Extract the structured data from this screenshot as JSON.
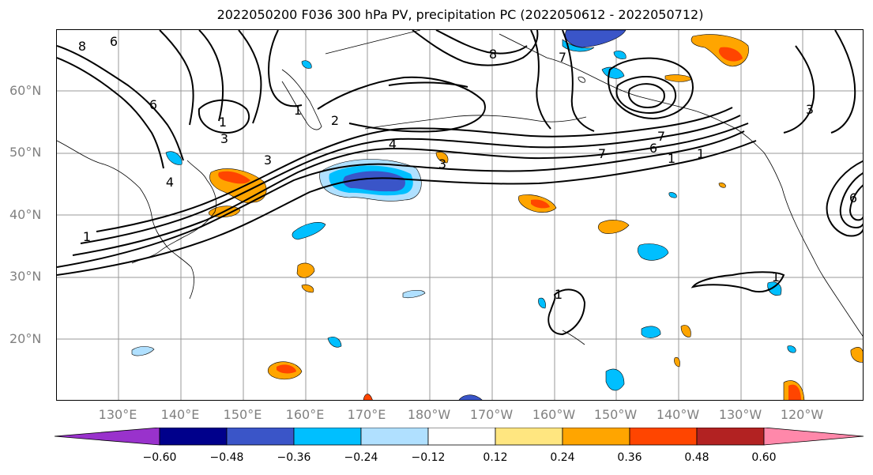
{
  "title": "2022050200 F036 300 hPa PV, precipitation PC (2022050612 - 2022050712)",
  "lat_labels": [
    "60°N",
    "50°N",
    "40°N",
    "30°N",
    "20°N"
  ],
  "lon_labels": [
    "130°E",
    "140°E",
    "150°E",
    "160°E",
    "170°E",
    "180°W",
    "170°W",
    "160°W",
    "150°W",
    "140°W",
    "130°W",
    "120°W"
  ],
  "colorbar": {
    "ticks": [
      "−0.60",
      "−0.48",
      "−0.36",
      "−0.24",
      "−0.12",
      "0.12",
      "0.24",
      "0.36",
      "0.48",
      "0.60"
    ],
    "colors": [
      "#9932cc",
      "#00008b",
      "#3a55c8",
      "#00bfff",
      "#b0e0ff",
      "#ffffff",
      "#ffe680",
      "#ffa500",
      "#ff4500",
      "#b22222",
      "#ff88aa"
    ]
  },
  "contour_labels": {
    "c1": "8",
    "c2": "6",
    "c3": "6",
    "c4": "1",
    "c5": "1",
    "c6": "2",
    "c7": "1",
    "c8": "3",
    "c9": "4",
    "c10": "3",
    "c11": "4",
    "c12": "3",
    "c13": "1",
    "c14": "8",
    "c15": "7",
    "c16": "7",
    "c17": "6",
    "c18": "7",
    "c19": "1",
    "c20": "3",
    "c21": "6",
    "c22": "1",
    "c23": "1"
  }
}
